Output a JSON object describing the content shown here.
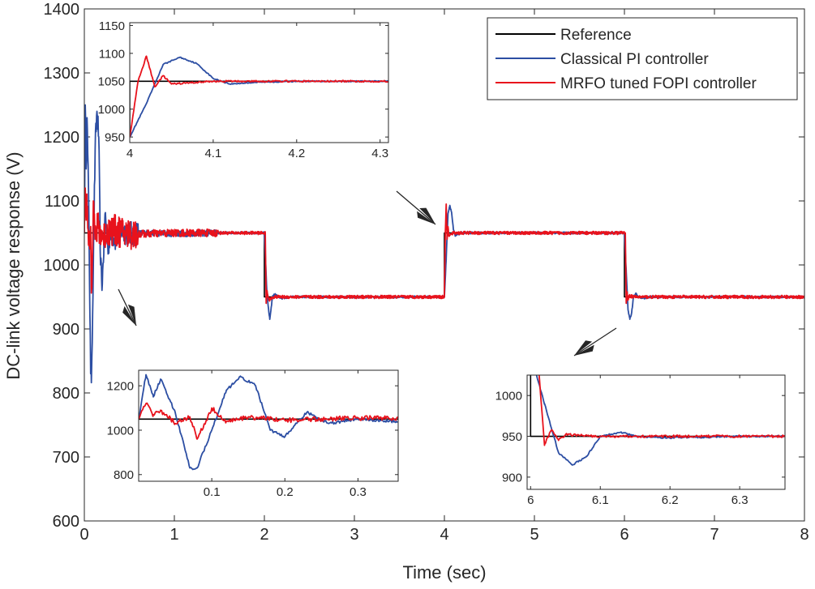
{
  "chart_data": {
    "type": "line",
    "xlabel": "Time (sec)",
    "ylabel": "DC-link voltage response (V)",
    "xlim": [
      0,
      8
    ],
    "ylim": [
      600,
      1400
    ],
    "xticks": [
      "0",
      "1",
      "2",
      "3",
      "4",
      "5",
      "6",
      "7",
      "8"
    ],
    "yticks": [
      "600",
      "700",
      "800",
      "900",
      "1000",
      "1100",
      "1200",
      "1300",
      "1400"
    ],
    "legend_position": "top-right",
    "grid": false,
    "series": [
      {
        "name": "Reference",
        "color": "#000000",
        "x": [
          0,
          2,
          2,
          4,
          4,
          6,
          6,
          8
        ],
        "y": [
          1050,
          1050,
          950,
          950,
          1050,
          1050,
          950,
          950
        ]
      },
      {
        "name": "Classical PI controller",
        "color": "#2c4ea3",
        "x": [
          0,
          0.01,
          0.02,
          0.03,
          0.05,
          0.07,
          0.08,
          0.1,
          0.12,
          0.14,
          0.16,
          0.18,
          0.2,
          0.23,
          0.26,
          0.3,
          0.35,
          0.4,
          0.5,
          0.7,
          1.0,
          1.5,
          1.99,
          2.0,
          2.03,
          2.06,
          2.09,
          2.12,
          2.15,
          2.2,
          2.3,
          3.99,
          4.0,
          4.02,
          4.04,
          4.06,
          4.08,
          4.1,
          4.12,
          4.15,
          4.2,
          4.3,
          5.99,
          6.0,
          6.02,
          6.04,
          6.06,
          6.08,
          6.1,
          6.13,
          6.15,
          6.2,
          6.3,
          8.0
        ],
        "y": [
          1050,
          1250,
          1150,
          1230,
          1080,
          830,
          830,
          1000,
          1180,
          1240,
          1200,
          1000,
          970,
          1080,
          1030,
          1050,
          1040,
          1055,
          1048,
          1050,
          1049,
          1050,
          1050,
          1050,
          950,
          915,
          950,
          955,
          950,
          948,
          950,
          950,
          950,
          1010,
          1080,
          1093,
          1082,
          1055,
          1045,
          1048,
          1050,
          1050,
          1050,
          1050,
          990,
          930,
          915,
          925,
          950,
          955,
          950,
          948,
          950,
          950
        ]
      },
      {
        "name": "MRFO tuned FOPI controller",
        "color": "#e8121c",
        "x": [
          0,
          0.01,
          0.02,
          0.03,
          0.05,
          0.07,
          0.08,
          0.1,
          0.12,
          0.15,
          0.2,
          0.3,
          0.5,
          1.0,
          1.99,
          2.0,
          2.01,
          2.02,
          2.03,
          2.05,
          2.1,
          3.99,
          4.0,
          4.01,
          4.02,
          4.03,
          4.04,
          4.05,
          4.1,
          5.99,
          6.0,
          6.01,
          6.02,
          6.03,
          6.04,
          6.05,
          6.1,
          8.0
        ],
        "y": [
          1050,
          1120,
          1070,
          1090,
          1030,
          1060,
          960,
          1100,
          1040,
          1060,
          1045,
          1055,
          1048,
          1050,
          1050,
          1050,
          1050,
          940,
          960,
          945,
          950,
          950,
          950,
          1050,
          1095,
          1040,
          1060,
          1045,
          1050,
          1050,
          1050,
          1050,
          940,
          958,
          945,
          952,
          950,
          950
        ]
      }
    ],
    "insets": [
      {
        "xlim": [
          4,
          4.31
        ],
        "ylim": [
          940,
          1155
        ],
        "xticks": [
          "4",
          "4.1",
          "4.2",
          "4.3"
        ],
        "yticks": [
          "950",
          "1000",
          "1050",
          "1100",
          "1150"
        ]
      },
      {
        "xlim": [
          0,
          0.355
        ],
        "ylim": [
          770,
          1270
        ],
        "xticks": [
          "0.1",
          "0.2",
          "0.3"
        ],
        "yticks": [
          "800",
          "1000",
          "1200"
        ]
      },
      {
        "xlim": [
          5.995,
          6.365
        ],
        "ylim": [
          885,
          1025
        ],
        "xticks": [
          "6",
          "6.1",
          "6.2",
          "6.3"
        ],
        "yticks": [
          "900",
          "950",
          "1000"
        ]
      }
    ]
  }
}
